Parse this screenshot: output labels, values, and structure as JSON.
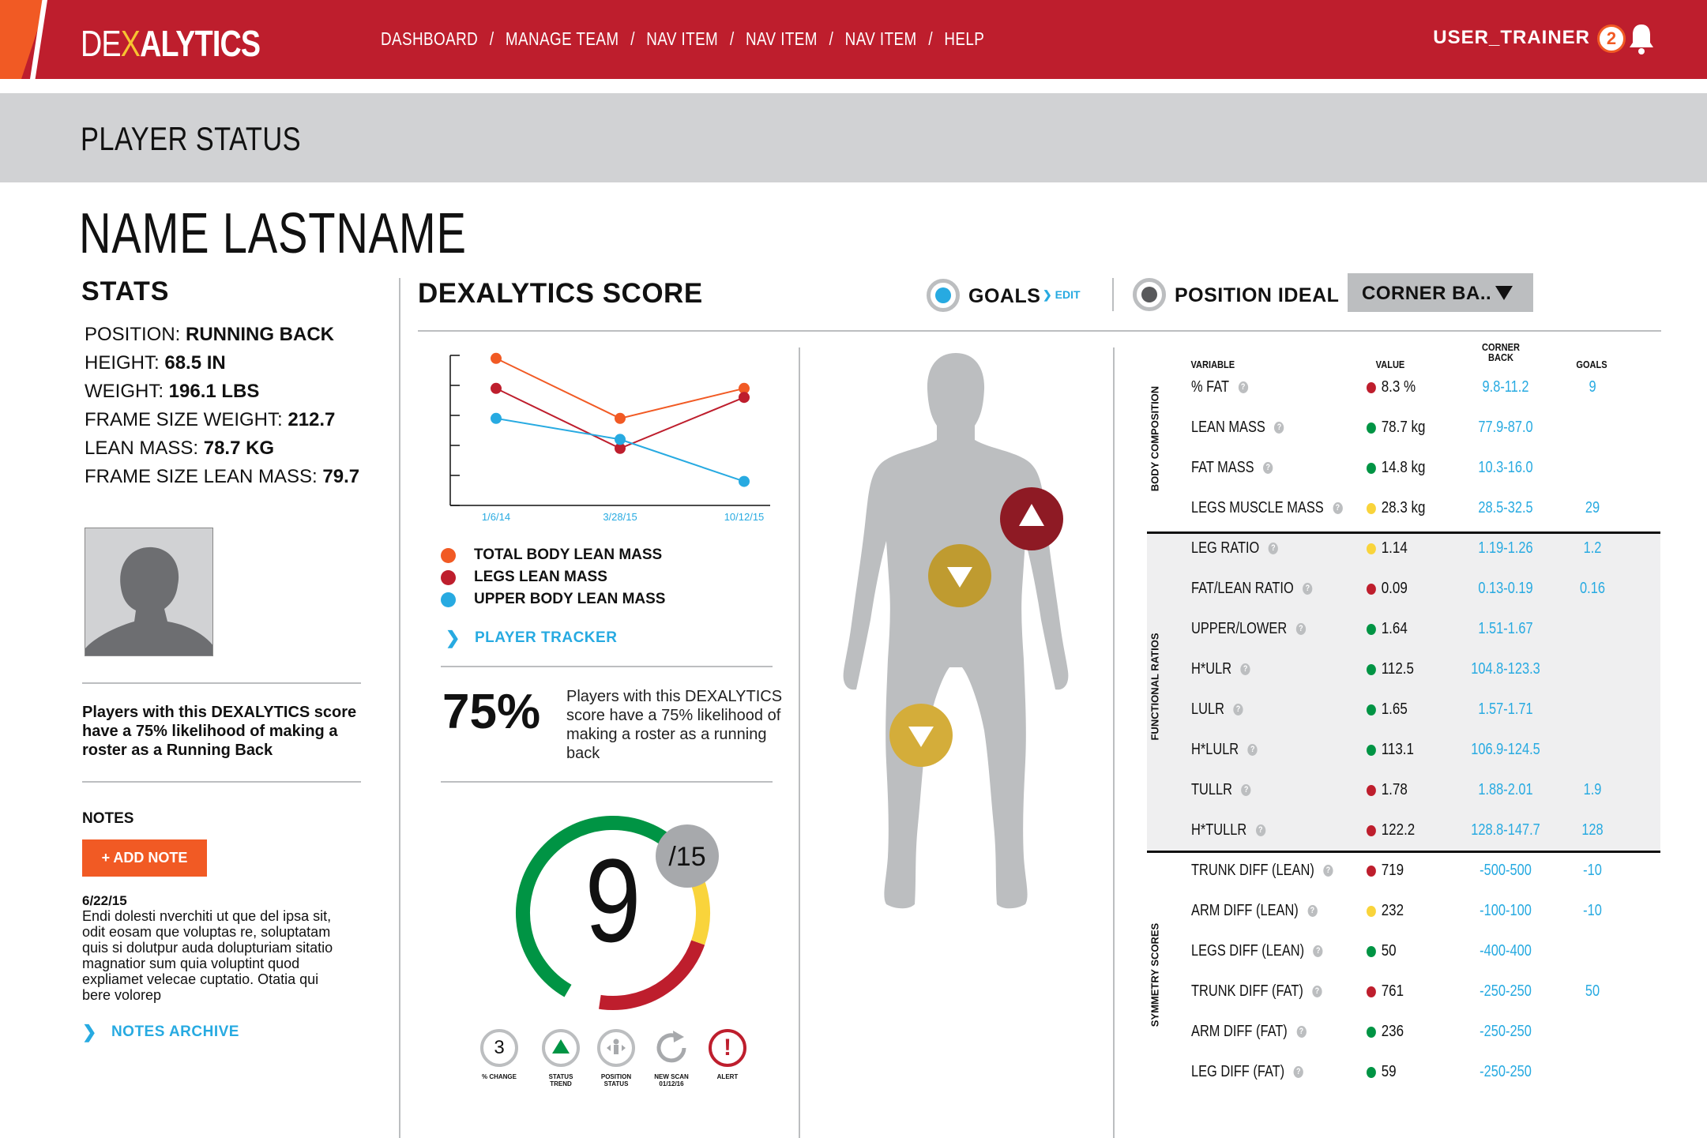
{
  "header": {
    "logo_left": "DE",
    "logo_slash": "X",
    "logo_right": "ALYTICS",
    "nav": [
      "DASHBOARD",
      "MANAGE TEAM",
      "NAV ITEM",
      "NAV ITEM",
      "NAV ITEM",
      "HELP"
    ],
    "nav_separator": "/",
    "user": "USER_TRAINER",
    "notification_count": "2"
  },
  "page_title": "PLAYER STATUS",
  "player_name": "NAME LASTNAME",
  "stats": {
    "heading": "STATS",
    "items": [
      {
        "label": "POSITION: ",
        "value": "RUNNING BACK"
      },
      {
        "label": "HEIGHT: ",
        "value": "68.5 IN"
      },
      {
        "label": "WEIGHT: ",
        "value": "196.1 LBS"
      },
      {
        "label": "FRAME SIZE WEIGHT: ",
        "value": "212.7"
      },
      {
        "label": "LEAN MASS: ",
        "value": "78.7 KG"
      },
      {
        "label": "FRAME SIZE LEAN MASS: ",
        "value": "79.7"
      }
    ],
    "likelihood_text": "Players with this DEXALYTICS score have a 75% likelihood of making a roster as a Running Back"
  },
  "notes": {
    "heading": "NOTES",
    "add_label": "+ ADD NOTE",
    "date": "6/22/15",
    "body": "Endi dolesti nverchiti ut que del ipsa sit, odit eosam que voluptas re, soluptatam quis si dolutpur auda dolupturiam sitatio magnatior sum quia voluptint quod expliamet velecae cuptatio. Otatia qui bere volorep",
    "archive_label": "NOTES ARCHIVE"
  },
  "score": {
    "heading": "DEXALYTICS SCORE",
    "goals_label": "GOALS",
    "edit_label": "EDIT",
    "position_ideal_label": "POSITION IDEAL",
    "position_dropdown": "CORNER BA..",
    "player_tracker_label": "PLAYER TRACKER",
    "percent": "75%",
    "percent_text": "Players with this DEXALYTICS score have a 75% likelihood of making a roster as a running back",
    "value": "9",
    "out_of": "/15",
    "gauge_segments": [
      {
        "color": "#009444",
        "fraction": 0.55
      },
      {
        "color": "#f9d43b",
        "fraction": 0.17
      },
      {
        "color": "#be1e2d",
        "fraction": 0.22
      },
      {
        "color": "#ffffff",
        "fraction": 0.06
      }
    ],
    "status_icons": [
      {
        "icon": "number-circle-icon",
        "text": "3",
        "label": [
          "% CHANGE"
        ]
      },
      {
        "icon": "trend-up-icon",
        "text": "",
        "label": [
          "STATUS",
          "TREND"
        ]
      },
      {
        "icon": "position-status-icon",
        "text": "",
        "label": [
          "POSITION",
          "STATUS"
        ]
      },
      {
        "icon": "refresh-icon",
        "text": "",
        "label": [
          "NEW SCAN",
          "01/12/16"
        ]
      },
      {
        "icon": "alert-icon",
        "text": "!",
        "label": [
          "ALERT"
        ]
      }
    ]
  },
  "chart_data": {
    "type": "line",
    "categories": [
      "1/6/14",
      "3/28/15",
      "10/12/15"
    ],
    "series": [
      {
        "name": "TOTAL BODY LEAN MASS",
        "color": "#f15a24",
        "values": [
          4.9,
          2.9,
          3.9
        ]
      },
      {
        "name": "LEGS LEAN MASS",
        "color": "#be1e2d",
        "values": [
          3.9,
          1.9,
          3.6
        ]
      },
      {
        "name": "UPPER BODY LEAN MASS",
        "color": "#27aae1",
        "values": [
          2.9,
          2.2,
          0.8
        ]
      }
    ],
    "ylim": [
      0,
      5
    ],
    "grid": false
  },
  "body_markers": [
    {
      "name": "arm-marker",
      "direction": "up",
      "color": "#8e1a24"
    },
    {
      "name": "torso-marker",
      "direction": "down",
      "color": "#bf9b30"
    },
    {
      "name": "leg-marker",
      "direction": "down",
      "color": "#d4ad3a"
    }
  ],
  "table": {
    "headers": {
      "variable": "VARIABLE",
      "value": "VALUE",
      "corner_back": [
        "CORNER",
        "BACK"
      ],
      "goals": "GOALS"
    },
    "sections": [
      "BODY COMPOSITION",
      "FUNCTIONAL RATIOS",
      "SYMMETRY SCORES"
    ],
    "rows": [
      {
        "variable": "% FAT",
        "status": "#be1e2d",
        "value": "8.3 %",
        "corner_back": "9.8-11.2",
        "goal": "9"
      },
      {
        "variable": "LEAN MASS",
        "status": "#009444",
        "value": "78.7 kg",
        "corner_back": "77.9-87.0",
        "goal": ""
      },
      {
        "variable": "FAT MASS",
        "status": "#009444",
        "value": "14.8 kg",
        "corner_back": "10.3-16.0",
        "goal": ""
      },
      {
        "variable": "LEGS MUSCLE MASS",
        "status": "#f9d43b",
        "value": "28.3 kg",
        "corner_back": "28.5-32.5",
        "goal": "29"
      },
      {
        "variable": "LEG RATIO",
        "status": "#f9d43b",
        "value": "1.14",
        "corner_back": "1.19-1.26",
        "goal": "1.2"
      },
      {
        "variable": "FAT/LEAN RATIO",
        "status": "#be1e2d",
        "value": "0.09",
        "corner_back": "0.13-0.19",
        "goal": "0.16"
      },
      {
        "variable": "UPPER/LOWER",
        "status": "#009444",
        "value": "1.64",
        "corner_back": "1.51-1.67",
        "goal": ""
      },
      {
        "variable": "H*ULR",
        "status": "#009444",
        "value": "112.5",
        "corner_back": "104.8-123.3",
        "goal": ""
      },
      {
        "variable": "LULR",
        "status": "#009444",
        "value": "1.65",
        "corner_back": "1.57-1.71",
        "goal": ""
      },
      {
        "variable": "H*LULR",
        "status": "#009444",
        "value": "113.1",
        "corner_back": "106.9-124.5",
        "goal": ""
      },
      {
        "variable": "TULLR",
        "status": "#be1e2d",
        "value": "1.78",
        "corner_back": "1.88-2.01",
        "goal": "1.9"
      },
      {
        "variable": "H*TULLR",
        "status": "#be1e2d",
        "value": "122.2",
        "corner_back": "128.8-147.7",
        "goal": "128"
      },
      {
        "variable": "TRUNK DIFF (LEAN)",
        "status": "#be1e2d",
        "value": "719",
        "corner_back": "-500-500",
        "goal": "-10"
      },
      {
        "variable": "ARM DIFF (LEAN)",
        "status": "#f9d43b",
        "value": "232",
        "corner_back": "-100-100",
        "goal": "-10"
      },
      {
        "variable": "LEGS DIFF (LEAN)",
        "status": "#009444",
        "value": "50",
        "corner_back": "-400-400",
        "goal": ""
      },
      {
        "variable": "TRUNK DIFF (FAT)",
        "status": "#be1e2d",
        "value": "761",
        "corner_back": "-250-250",
        "goal": "50"
      },
      {
        "variable": "ARM DIFF (FAT)",
        "status": "#009444",
        "value": "236",
        "corner_back": "-250-250",
        "goal": ""
      },
      {
        "variable": "LEG DIFF (FAT)",
        "status": "#009444",
        "value": "59",
        "corner_back": "-250-250",
        "goal": ""
      }
    ]
  },
  "colors": {
    "brand_red": "#be1e2d",
    "brand_orange": "#f15a24",
    "accent_blue": "#27aae1",
    "gray": "#bcbec0"
  }
}
